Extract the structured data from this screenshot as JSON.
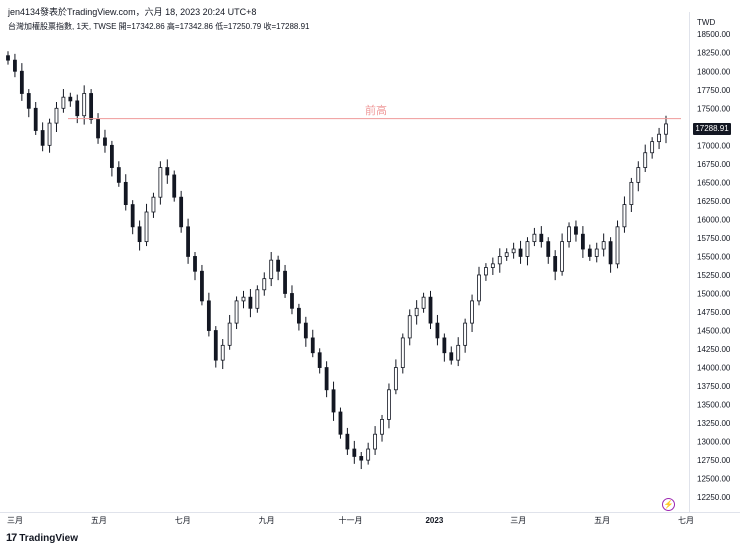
{
  "header": {
    "attribution": "jen4134發表於TradingView.com，六月 18, 2023 20:24 UTC+8",
    "ohlc": "台灣加權股票指數, 1天, TWSE  開=17342.86  高=17342.86  低=17250.79  收=17288.91"
  },
  "price_axis": {
    "currency": "TWD",
    "last_price_label": "17288.91"
  },
  "annotation": {
    "label": "前高"
  },
  "footer": {
    "logo_text": "TradingView",
    "logo_mark": "17"
  },
  "colors": {
    "candle": "#131722",
    "line": "#ef9a9a",
    "axis_text": "#131722",
    "grid_border": "#e0e3eb"
  },
  "chart_data": {
    "type": "candlestick",
    "title": "台灣加權股票指數, 1天, TWSE",
    "ylabel": "TWD",
    "ylim": [
      12050,
      18800
    ],
    "y_ticks": [
      12250,
      12500,
      12750,
      13000,
      13250,
      13500,
      13750,
      14000,
      14250,
      14500,
      14750,
      15000,
      15250,
      15500,
      15750,
      16000,
      16250,
      16500,
      16750,
      17000,
      17250,
      17500,
      17750,
      18000,
      18250,
      18500
    ],
    "x_ticks": [
      "三月",
      "五月",
      "七月",
      "九月",
      "十一月",
      "2023",
      "三月",
      "五月",
      "七月"
    ],
    "horizontal_line": {
      "value": 17360,
      "label": "前高"
    },
    "last_close": 17288.91,
    "closes": [
      18150,
      18000,
      17700,
      17500,
      17200,
      17000,
      17300,
      17500,
      17650,
      17600,
      17400,
      17700,
      17350,
      17100,
      17000,
      16700,
      16500,
      16200,
      15900,
      15700,
      16100,
      16300,
      16700,
      16600,
      16300,
      15900,
      15500,
      15300,
      14900,
      14500,
      14100,
      14300,
      14600,
      14900,
      14950,
      14800,
      15050,
      15200,
      15450,
      15300,
      15000,
      14800,
      14600,
      14400,
      14200,
      14000,
      13700,
      13400,
      13100,
      12900,
      12800,
      12750,
      12900,
      13100,
      13300,
      13700,
      14000,
      14400,
      14700,
      14800,
      14950,
      14600,
      14400,
      14200,
      14100,
      14300,
      14600,
      14900,
      15250,
      15350,
      15400,
      15500,
      15550,
      15600,
      15500,
      15700,
      15800,
      15700,
      15500,
      15300,
      15700,
      15900,
      15800,
      15600,
      15500,
      15600,
      15700,
      15400,
      15900,
      16200,
      16500,
      16700,
      16900,
      17050,
      17150,
      17288.91
    ]
  }
}
